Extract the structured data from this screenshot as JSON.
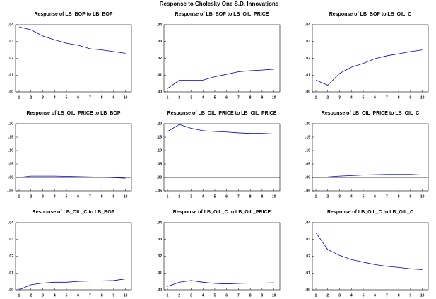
{
  "title": "Response to Cholesky One S.D. Innovations",
  "chart_data": [
    {
      "type": "line",
      "title": "Response of LB_BOP to LB_BOP",
      "x": [
        1,
        2,
        3,
        4,
        5,
        6,
        7,
        8,
        9,
        10
      ],
      "xlim": [
        0.7,
        10.5
      ],
      "xticks": [
        1,
        2,
        3,
        4,
        5,
        6,
        7,
        8,
        9,
        10
      ],
      "ylim": [
        0,
        0.04
      ],
      "yticks": [
        {
          "value": 0,
          "label": ".00"
        },
        {
          "value": 0.01,
          "label": ".01"
        },
        {
          "value": 0.02,
          "label": ".02"
        },
        {
          "value": 0.03,
          "label": ".03"
        },
        {
          "value": 0.04,
          "label": ".04"
        }
      ],
      "zero_line": false,
      "series": [
        {
          "color": "#0000cc",
          "values": [
            0.0387,
            0.037,
            0.0333,
            0.031,
            0.029,
            0.0278,
            0.0257,
            0.025,
            0.024,
            0.023
          ]
        }
      ]
    },
    {
      "type": "line",
      "title": "Response of LB_BOP to LB_OIL_PRICE",
      "x": [
        1,
        2,
        3,
        4,
        5,
        6,
        7,
        8,
        9,
        10
      ],
      "xlim": [
        0.7,
        10.5
      ],
      "xticks": [
        1,
        2,
        3,
        4,
        5,
        6,
        7,
        8,
        9,
        10
      ],
      "ylim": [
        0,
        0.04
      ],
      "yticks": [
        {
          "value": 0,
          "label": ".00"
        },
        {
          "value": 0.01,
          "label": ".01"
        },
        {
          "value": 0.02,
          "label": ".02"
        },
        {
          "value": 0.03,
          "label": ".03"
        },
        {
          "value": 0.04,
          "label": ".04"
        }
      ],
      "zero_line": false,
      "series": [
        {
          "color": "#0000cc",
          "values": [
            0.002,
            0.007,
            0.007,
            0.007,
            0.009,
            0.0105,
            0.012,
            0.0126,
            0.013,
            0.0135
          ]
        }
      ]
    },
    {
      "type": "line",
      "title": "Response of LB_BOP to LB_OIL_C",
      "x": [
        1,
        2,
        3,
        4,
        5,
        6,
        7,
        8,
        9,
        10
      ],
      "xlim": [
        0.7,
        10.5
      ],
      "xticks": [
        1,
        2,
        3,
        4,
        5,
        6,
        7,
        8,
        9,
        10
      ],
      "ylim": [
        0,
        0.04
      ],
      "yticks": [
        {
          "value": 0,
          "label": ".00"
        },
        {
          "value": 0.01,
          "label": ".01"
        },
        {
          "value": 0.02,
          "label": ".02"
        },
        {
          "value": 0.03,
          "label": ".03"
        },
        {
          "value": 0.04,
          "label": ".04"
        }
      ],
      "zero_line": false,
      "series": [
        {
          "color": "#0000cc",
          "values": [
            0.007,
            0.004,
            0.011,
            0.0147,
            0.017,
            0.0198,
            0.0215,
            0.0227,
            0.024,
            0.025
          ]
        }
      ]
    },
    {
      "type": "line",
      "title": "Response of LB_OIL_PRICE to LB_BOP",
      "x": [
        1,
        2,
        3,
        4,
        5,
        6,
        7,
        8,
        9,
        10
      ],
      "xlim": [
        0.7,
        10.5
      ],
      "xticks": [
        1,
        2,
        3,
        4,
        5,
        6,
        7,
        8,
        9,
        10
      ],
      "ylim": [
        -0.05,
        0.2
      ],
      "yticks": [
        {
          "value": -0.05,
          "label": "-.05"
        },
        {
          "value": 0,
          "label": ".00"
        },
        {
          "value": 0.05,
          "label": ".05"
        },
        {
          "value": 0.1,
          "label": ".10"
        },
        {
          "value": 0.15,
          "label": ".15"
        },
        {
          "value": 0.2,
          "label": ".20"
        }
      ],
      "zero_line": true,
      "series": [
        {
          "color": "#0000cc",
          "values": [
            0,
            0.005,
            0.005,
            0.005,
            0.004,
            0.003,
            0.002,
            0.001,
            -0.001,
            -0.003
          ]
        }
      ]
    },
    {
      "type": "line",
      "title": "Response of LB_OIL_PRICE to LB_OIL_PRICE",
      "x": [
        1,
        2,
        3,
        4,
        5,
        6,
        7,
        8,
        9,
        10
      ],
      "xlim": [
        0.7,
        10.5
      ],
      "xticks": [
        1,
        2,
        3,
        4,
        5,
        6,
        7,
        8,
        9,
        10
      ],
      "ylim": [
        -0.05,
        0.2
      ],
      "yticks": [
        {
          "value": -0.05,
          "label": "-.05"
        },
        {
          "value": 0,
          "label": ".00"
        },
        {
          "value": 0.05,
          "label": ".05"
        },
        {
          "value": 0.1,
          "label": ".10"
        },
        {
          "value": 0.15,
          "label": ".15"
        },
        {
          "value": 0.2,
          "label": ".20"
        }
      ],
      "zero_line": true,
      "series": [
        {
          "color": "#0000cc",
          "values": [
            0.171,
            0.197,
            0.183,
            0.174,
            0.171,
            0.169,
            0.166,
            0.164,
            0.164,
            0.162
          ]
        }
      ]
    },
    {
      "type": "line",
      "title": "Response of LB_OIL_PRICE to LB_OIL_C",
      "x": [
        1,
        2,
        3,
        4,
        5,
        6,
        7,
        8,
        9,
        10
      ],
      "xlim": [
        0.7,
        10.5
      ],
      "xticks": [
        1,
        2,
        3,
        4,
        5,
        6,
        7,
        8,
        9,
        10
      ],
      "ylim": [
        -0.05,
        0.2
      ],
      "yticks": [
        {
          "value": -0.05,
          "label": "-.05"
        },
        {
          "value": 0,
          "label": ".00"
        },
        {
          "value": 0.05,
          "label": ".05"
        },
        {
          "value": 0.1,
          "label": ".10"
        },
        {
          "value": 0.15,
          "label": ".15"
        },
        {
          "value": 0.2,
          "label": ".20"
        }
      ],
      "zero_line": true,
      "series": [
        {
          "color": "#0000cc",
          "values": [
            0,
            0.002,
            0.005,
            0.007,
            0.009,
            0.01,
            0.011,
            0.011,
            0.011,
            0.009
          ]
        }
      ]
    },
    {
      "type": "line",
      "title": "Response of LB_OIL_C to LB_BOP",
      "x": [
        1,
        2,
        3,
        4,
        5,
        6,
        7,
        8,
        9,
        10
      ],
      "xlim": [
        0.7,
        10.5
      ],
      "xticks": [
        1,
        2,
        3,
        4,
        5,
        6,
        7,
        8,
        9,
        10
      ],
      "ylim": [
        0,
        0.04
      ],
      "yticks": [
        {
          "value": 0,
          "label": ".00"
        },
        {
          "value": 0.01,
          "label": ".01"
        },
        {
          "value": 0.02,
          "label": ".02"
        },
        {
          "value": 0.03,
          "label": ".03"
        },
        {
          "value": 0.04,
          "label": ".04"
        }
      ],
      "zero_line": false,
      "series": [
        {
          "color": "#0000cc",
          "values": [
            0,
            0.003,
            0.004,
            0.0045,
            0.0045,
            0.005,
            0.0052,
            0.0053,
            0.0055,
            0.0065
          ]
        }
      ]
    },
    {
      "type": "line",
      "title": "Response of LB_OIL_C to LB_OIL_PRICE",
      "x": [
        1,
        2,
        3,
        4,
        5,
        6,
        7,
        8,
        9,
        10
      ],
      "xlim": [
        0.7,
        10.5
      ],
      "xticks": [
        1,
        2,
        3,
        4,
        5,
        6,
        7,
        8,
        9,
        10
      ],
      "ylim": [
        0,
        0.04
      ],
      "yticks": [
        {
          "value": 0,
          "label": ".00"
        },
        {
          "value": 0.01,
          "label": ".01"
        },
        {
          "value": 0.02,
          "label": ".02"
        },
        {
          "value": 0.03,
          "label": ".03"
        },
        {
          "value": 0.04,
          "label": ".04"
        }
      ],
      "zero_line": false,
      "series": [
        {
          "color": "#0000cc",
          "values": [
            0.002,
            0.0045,
            0.0055,
            0.0045,
            0.0038,
            0.0035,
            0.0038,
            0.004,
            0.004,
            0.0042
          ]
        }
      ]
    },
    {
      "type": "line",
      "title": "Response of LB_OIL_C to LB_OIL_C",
      "x": [
        1,
        2,
        3,
        4,
        5,
        6,
        7,
        8,
        9,
        10
      ],
      "xlim": [
        0.7,
        10.5
      ],
      "xticks": [
        1,
        2,
        3,
        4,
        5,
        6,
        7,
        8,
        9,
        10
      ],
      "ylim": [
        0,
        0.04
      ],
      "yticks": [
        {
          "value": 0,
          "label": ".00"
        },
        {
          "value": 0.01,
          "label": ".01"
        },
        {
          "value": 0.02,
          "label": ".02"
        },
        {
          "value": 0.03,
          "label": ".03"
        },
        {
          "value": 0.04,
          "label": ".04"
        }
      ],
      "zero_line": false,
      "series": [
        {
          "color": "#0000cc",
          "values": [
            0.034,
            0.024,
            0.0205,
            0.018,
            0.0165,
            0.015,
            0.014,
            0.0133,
            0.0125,
            0.012
          ]
        }
      ]
    }
  ]
}
